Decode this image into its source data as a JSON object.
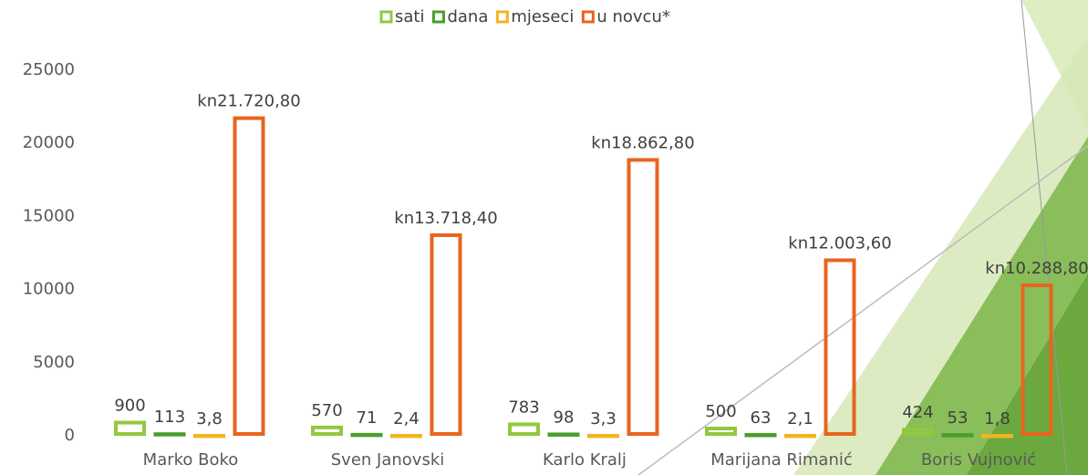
{
  "chart_data": {
    "type": "bar",
    "categories": [
      "Marko Boko",
      "Sven Janovski",
      "Karlo Kralj",
      "Marijana Rimanić",
      "Boris Vujnović"
    ],
    "series": [
      {
        "name": "sati",
        "color": "#92c83e",
        "values": [
          900,
          570,
          783,
          500,
          424
        ]
      },
      {
        "name": "dana",
        "color": "#4a9e2c",
        "values": [
          113,
          71,
          98,
          63,
          53
        ]
      },
      {
        "name": "mjeseci",
        "color": "#f0b520",
        "values": [
          3.8,
          2.4,
          3.3,
          2.1,
          1.8
        ],
        "value_labels": [
          "3,8",
          "2,4",
          "3,3",
          "2,1",
          "1,8"
        ]
      },
      {
        "name": "u novcu*",
        "color": "#e8651f",
        "values": [
          21720.8,
          13718.4,
          18862.8,
          12003.6,
          10288.8
        ],
        "value_labels": [
          "kn21.720,80",
          "kn13.718,40",
          "kn18.862,80",
          "kn12.003,60",
          "kn10.288,80"
        ]
      }
    ],
    "ylim": [
      0,
      25000
    ],
    "yticks": [
      0,
      5000,
      10000,
      15000,
      20000,
      25000
    ],
    "grid": false,
    "legend": "top"
  }
}
